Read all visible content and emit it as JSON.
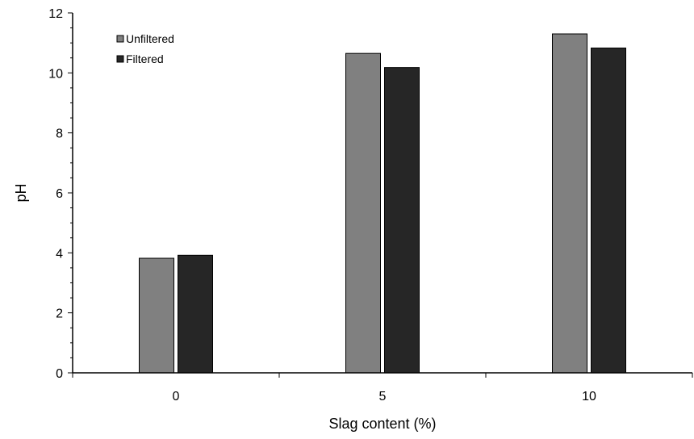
{
  "chart_data": {
    "type": "bar",
    "categories": [
      "0",
      "5",
      "10"
    ],
    "series": [
      {
        "name": "Unfiltered",
        "values": [
          3.82,
          10.65,
          11.3
        ],
        "color": "#808080"
      },
      {
        "name": "Filtered",
        "values": [
          3.92,
          10.18,
          10.83
        ],
        "color": "#262626"
      }
    ],
    "xlabel": "Slag content (%)",
    "ylabel": "pH",
    "ylim": [
      0,
      12
    ],
    "yticks": [
      0,
      2,
      4,
      6,
      8,
      10,
      12
    ],
    "y_minor_step": 0.5,
    "grid": false,
    "legend_position": "top-left"
  }
}
